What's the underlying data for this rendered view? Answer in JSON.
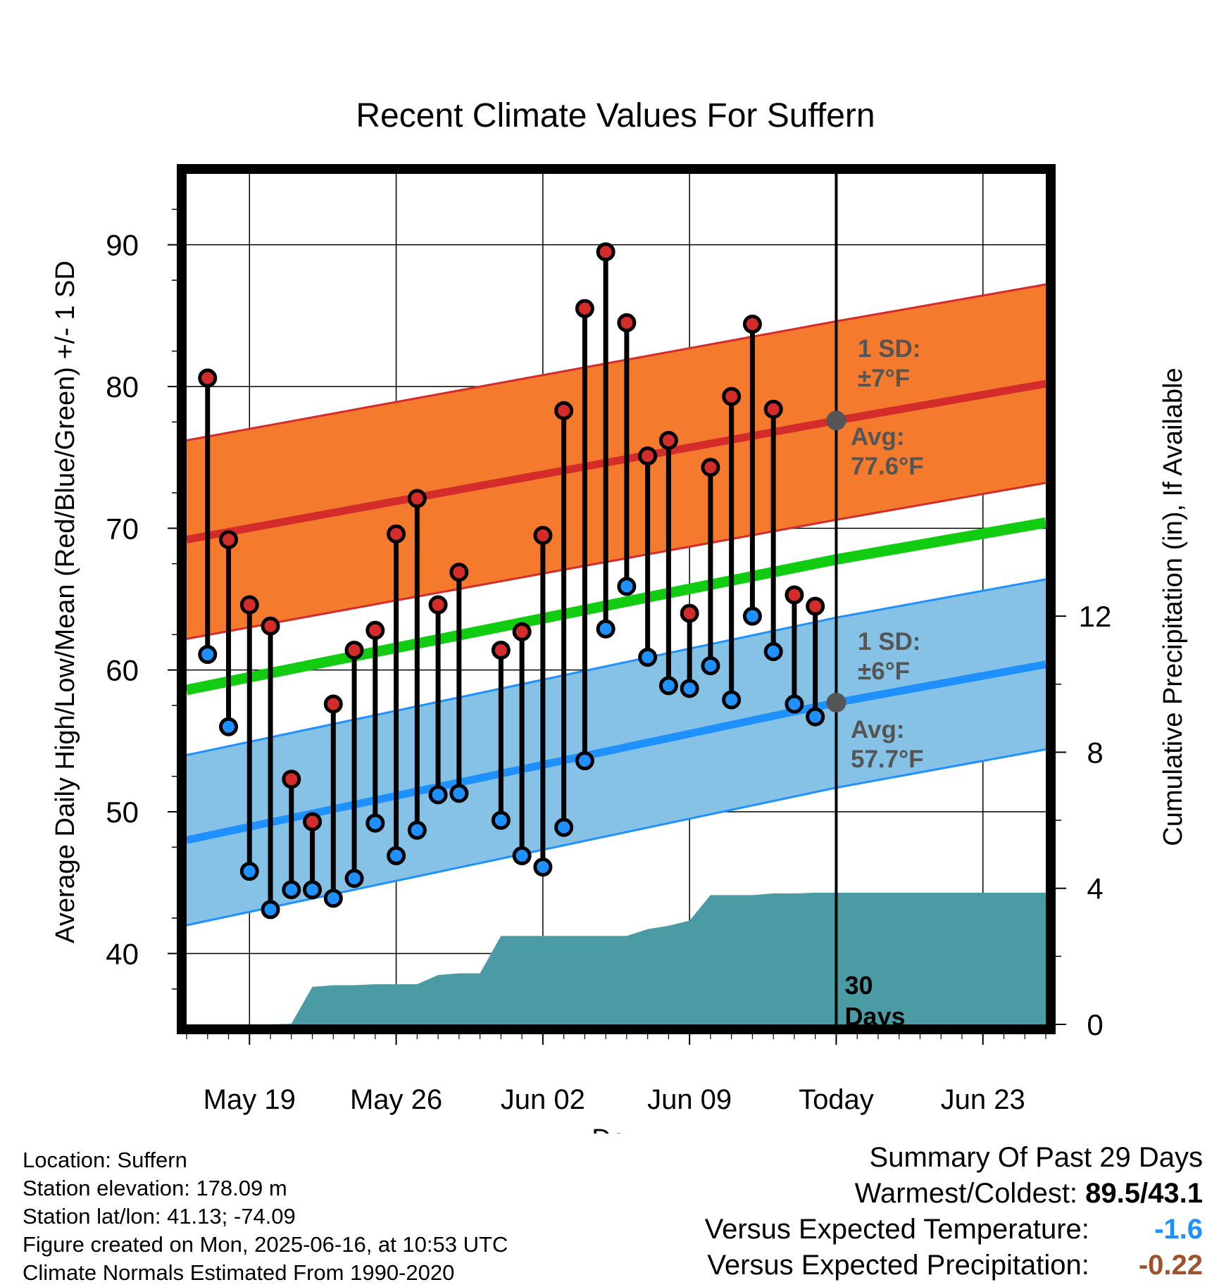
{
  "chart_data": {
    "type": "line",
    "title": "Recent Climate Values For Suffern",
    "xlabel": "Day",
    "ylabel_left": "Average Daily High/Low/Mean (Red/Blue/Green) +/- 1 SD",
    "ylabel_right": "Cumulative Precipitation (in), If Available",
    "x_ticks": [
      "May 19",
      "May 26",
      "Jun 02",
      "Jun 09",
      "Today",
      "Jun 23"
    ],
    "y_ticks_left": [
      40,
      50,
      60,
      70,
      80,
      90
    ],
    "y_ticks_right": [
      0,
      4,
      8,
      12
    ],
    "xlim": [
      "2025-05-16",
      "2025-06-26"
    ],
    "ylim_left": [
      35,
      95
    ],
    "ylim_right": [
      0,
      25
    ],
    "today": "2025-06-16",
    "today_label": "30\nDays",
    "colors": {
      "high_band": "#f47a2e",
      "high_line": "#d42b2b",
      "low_band": "#86c2e6",
      "low_line": "#1e90ff",
      "mean_line": "#12cc12",
      "precip": "#4a9ba3",
      "high_marker": "#d42b2b",
      "low_marker": "#1e90ff",
      "annotation": "#555555"
    },
    "normals": {
      "dates": [
        "2025-05-16",
        "2025-06-16",
        "2025-06-26"
      ],
      "avg_high": [
        69.2,
        77.6,
        80.2
      ],
      "avg_high_sd": 7,
      "avg_low": [
        48.0,
        57.7,
        60.4
      ],
      "avg_low_sd": 6,
      "avg_mean": [
        58.6,
        67.8,
        70.4
      ]
    },
    "annotations": {
      "high_sd": "1 SD:\n±7°F",
      "high_avg": "Avg:\n77.6°F",
      "low_sd": "1 SD:\n±6°F",
      "low_avg": "Avg:\n57.7°F"
    },
    "daily": {
      "dates": [
        "2025-05-17",
        "2025-05-18",
        "2025-05-19",
        "2025-05-20",
        "2025-05-21",
        "2025-05-22",
        "2025-05-23",
        "2025-05-24",
        "2025-05-25",
        "2025-05-26",
        "2025-05-27",
        "2025-05-28",
        "2025-05-29",
        "2025-05-31",
        "2025-06-01",
        "2025-06-02",
        "2025-06-03",
        "2025-06-04",
        "2025-06-05",
        "2025-06-06",
        "2025-06-07",
        "2025-06-08",
        "2025-06-09",
        "2025-06-10",
        "2025-06-11",
        "2025-06-12",
        "2025-06-13",
        "2025-06-14",
        "2025-06-15"
      ],
      "high": [
        80.6,
        69.2,
        64.6,
        63.1,
        52.3,
        49.3,
        57.6,
        61.4,
        62.8,
        69.6,
        72.1,
        64.6,
        66.9,
        61.4,
        62.7,
        69.5,
        78.3,
        85.5,
        89.5,
        84.5,
        75.1,
        76.2,
        64.0,
        74.3,
        79.3,
        84.4,
        78.4,
        65.3,
        64.5
      ],
      "low": [
        61.1,
        56.0,
        45.8,
        43.1,
        44.5,
        44.5,
        43.9,
        45.3,
        49.2,
        46.9,
        48.7,
        51.2,
        51.3,
        49.4,
        46.9,
        46.1,
        48.9,
        53.6,
        62.9,
        65.9,
        60.9,
        58.9,
        58.7,
        60.3,
        57.9,
        63.8,
        61.3,
        57.6,
        56.7
      ]
    },
    "precip_cumulative": {
      "dates": [
        "2025-05-16",
        "2025-05-18",
        "2025-05-19",
        "2025-05-20",
        "2025-05-21",
        "2025-05-22",
        "2025-05-23",
        "2025-05-24",
        "2025-05-25",
        "2025-05-26",
        "2025-05-27",
        "2025-05-28",
        "2025-05-29",
        "2025-05-30",
        "2025-05-31",
        "2025-06-01",
        "2025-06-02",
        "2025-06-03",
        "2025-06-04",
        "2025-06-05",
        "2025-06-06",
        "2025-06-07",
        "2025-06-08",
        "2025-06-09",
        "2025-06-10",
        "2025-06-11",
        "2025-06-12",
        "2025-06-13",
        "2025-06-14",
        "2025-06-15",
        "2025-06-16",
        "2025-06-26"
      ],
      "values": [
        0,
        0,
        0,
        0,
        0.02,
        1.1,
        1.15,
        1.15,
        1.18,
        1.18,
        1.18,
        1.45,
        1.5,
        1.5,
        2.6,
        2.6,
        2.6,
        2.6,
        2.6,
        2.6,
        2.6,
        2.8,
        2.9,
        3.05,
        3.8,
        3.8,
        3.8,
        3.85,
        3.85,
        3.87,
        3.87,
        3.87
      ]
    }
  },
  "footer": {
    "location": "Location: Suffern",
    "elevation": "Station elevation: 178.09 m",
    "latlon": "Station lat/lon: 41.13; -74.09",
    "created": "Figure created on Mon, 2025-06-16, at 10:53 UTC",
    "normals": "Climate Normals Estimated From 1990-2020"
  },
  "summary": {
    "title": "Summary Of Past 29 Days",
    "warmest_label": "Warmest/Coldest:",
    "warmest_value": "89.5/43.1",
    "temp_label": "Versus Expected Temperature:",
    "temp_value": "-1.6",
    "temp_color": "#1e90ff",
    "precip_label": "Versus Expected Precipitation:",
    "precip_value": "-0.22",
    "precip_color": "#a0522d"
  }
}
